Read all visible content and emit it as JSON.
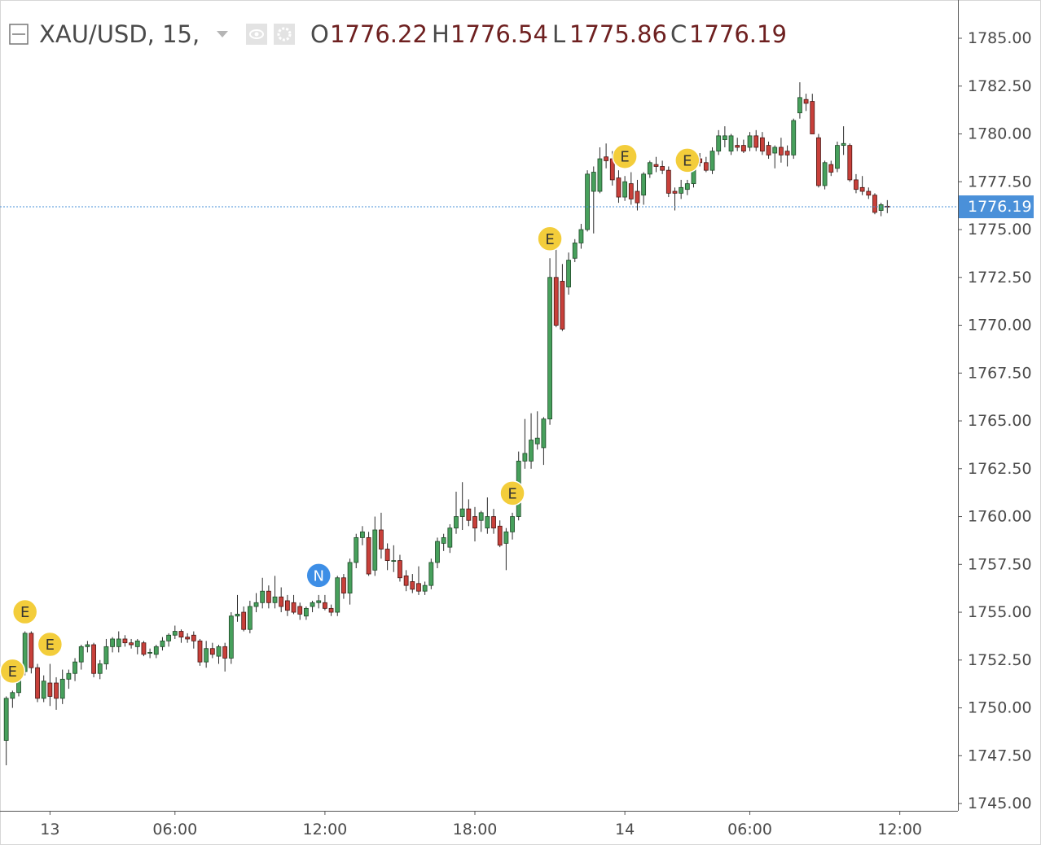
{
  "chart_data": {
    "type": "candlestick",
    "title": "XAU/USD, 15,",
    "ohlc_labels": [
      "O",
      "H",
      "L",
      "C"
    ],
    "up_color": "#47a05c",
    "down_color": "#c8403a",
    "price_line_color": "#4a90d9",
    "event_colors": {
      "E": "#f3cd3b",
      "N": "#3d8ee6"
    },
    "xlim": [
      -1,
      152.3
    ],
    "xticks": [
      {
        "value": 7,
        "label": "13"
      },
      {
        "value": 27,
        "label": "06:00"
      },
      {
        "value": 51,
        "label": "12:00"
      },
      {
        "value": 75,
        "label": "18:00"
      },
      {
        "value": 99,
        "label": "14"
      },
      {
        "value": 119,
        "label": "06:00"
      },
      {
        "value": 143,
        "label": "12:00"
      }
    ],
    "ylim": [
      1744.62,
      1787
    ],
    "yticks": [
      {
        "value": 1745,
        "label": "1745.00"
      },
      {
        "value": 1747.5,
        "label": "1747.50"
      },
      {
        "value": 1750,
        "label": "1750.00"
      },
      {
        "value": 1752.5,
        "label": "1752.50"
      },
      {
        "value": 1755,
        "label": "1755.00"
      },
      {
        "value": 1757.5,
        "label": "1757.50"
      },
      {
        "value": 1760,
        "label": "1760.00"
      },
      {
        "value": 1762.5,
        "label": "1762.50"
      },
      {
        "value": 1765,
        "label": "1765.00"
      },
      {
        "value": 1767.5,
        "label": "1767.50"
      },
      {
        "value": 1770,
        "label": "1770.00"
      },
      {
        "value": 1772.5,
        "label": "1772.50"
      },
      {
        "value": 1775,
        "label": "1775.00"
      },
      {
        "value": 1777.5,
        "label": "1777.50"
      },
      {
        "value": 1780,
        "label": "1780.00"
      },
      {
        "value": 1782.5,
        "label": "1782.50"
      },
      {
        "value": 1785,
        "label": "1785.00"
      }
    ],
    "grid": false,
    "open": [
      1748.3,
      1750.5,
      1750.8,
      1751.9,
      1753.9,
      1752.1,
      1750.5,
      1751.3,
      1751.3,
      1750.5,
      1751.5,
      1751.8,
      1752.4,
      1753.2,
      1753.3,
      1751.8,
      1752.3,
      1753.2,
      1753.2,
      1753.6,
      1753.4,
      1753.2,
      1753.4,
      1752.9,
      1752.8,
      1753.2,
      1753.5,
      1753.8,
      1754.0,
      1753.7,
      1753.8,
      1753.5,
      1752.4,
      1753.1,
      1752.7,
      1753.2,
      1752.6,
      1754.8,
      1755.0,
      1754.1,
      1755.3,
      1755.5,
      1756.1,
      1755.5,
      1755.8,
      1755.6,
      1755.5,
      1755.3,
      1754.8,
      1755.3,
      1755.5,
      1755.5,
      1755.2,
      1755.0,
      1756.8,
      1756.0,
      1757.6,
      1758.9,
      1758.9,
      1757.2,
      1759.3,
      1758.3,
      1757.7,
      1757.7,
      1756.9,
      1756.6,
      1756.5,
      1756.1,
      1756.4,
      1757.6,
      1758.6,
      1758.4,
      1759.4,
      1760.0,
      1760.4,
      1760.0,
      1759.8,
      1759.4,
      1760.0,
      1759.5,
      1758.6,
      1759.2,
      1760.0,
      1762.9,
      1762.9,
      1763.8,
      1763.6,
      1765.1,
      1772.5,
      1772.3,
      1772.0,
      1773.5,
      1774.3,
      1775.0,
      1777.0,
      1777.0,
      1778.8,
      1778.7,
      1777.7,
      1776.7,
      1777.4,
      1777.0,
      1776.8,
      1777.9,
      1778.4,
      1778.3,
      1778.1,
      1777.0,
      1776.9,
      1777.1,
      1777.4,
      1778.7,
      1778.5,
      1778.1,
      1779.1,
      1779.7,
      1779.1,
      1779.4,
      1779.4,
      1779.3,
      1779.9,
      1779.8,
      1779.4,
      1779.0,
      1779.3,
      1779.1,
      1778.9,
      1781.1,
      1781.8,
      1781.7,
      1779.8,
      1777.3,
      1778.4,
      1778.2,
      1779.4,
      1779.4,
      1777.6,
      1777.2,
      1777.0,
      1776.8,
      1776.0,
      1776.22
    ],
    "high": [
      1750.6,
      1750.9,
      1751.9,
      1754.0,
      1754.0,
      1752.3,
      1751.7,
      1752.3,
      1751.6,
      1752.0,
      1752.0,
      1752.6,
      1753.3,
      1753.5,
      1753.4,
      1752.5,
      1753.6,
      1753.7,
      1754.0,
      1753.8,
      1753.6,
      1753.6,
      1753.5,
      1753.1,
      1753.3,
      1753.7,
      1753.9,
      1754.3,
      1754.1,
      1753.9,
      1754.0,
      1753.6,
      1753.5,
      1753.4,
      1753.3,
      1753.4,
      1755.0,
      1755.9,
      1755.3,
      1755.6,
      1756.0,
      1756.8,
      1756.4,
      1756.9,
      1756.3,
      1755.9,
      1755.9,
      1755.5,
      1755.3,
      1755.6,
      1755.9,
      1755.9,
      1755.4,
      1756.9,
      1757.0,
      1757.8,
      1759.1,
      1759.5,
      1759.2,
      1760.0,
      1760.2,
      1758.6,
      1758.5,
      1758.0,
      1757.2,
      1757.0,
      1757.4,
      1756.6,
      1757.8,
      1758.9,
      1759.1,
      1759.6,
      1761.3,
      1761.8,
      1760.9,
      1760.5,
      1760.3,
      1761.0,
      1760.4,
      1759.8,
      1759.4,
      1760.2,
      1763.4,
      1765.1,
      1765.4,
      1765.5,
      1765.2,
      1773.5,
      1774.4,
      1773.2,
      1773.8,
      1774.5,
      1775.3,
      1778.1,
      1778.3,
      1779.3,
      1779.5,
      1779.1,
      1778.1,
      1777.8,
      1778.0,
      1777.6,
      1778.0,
      1778.6,
      1778.8,
      1778.6,
      1778.3,
      1777.2,
      1777.6,
      1777.6,
      1778.7,
      1779.0,
      1778.8,
      1779.3,
      1780.2,
      1780.4,
      1780.0,
      1779.8,
      1779.7,
      1780.1,
      1780.2,
      1780.1,
      1779.6,
      1779.4,
      1779.8,
      1779.4,
      1780.8,
      1782.7,
      1782.1,
      1782.1,
      1780.0,
      1778.6,
      1778.6,
      1779.6,
      1780.4,
      1779.5,
      1777.9,
      1777.8,
      1777.2,
      1776.9,
      1776.4,
      1776.54
    ],
    "low": [
      1747.0,
      1750.0,
      1750.6,
      1751.7,
      1751.8,
      1750.3,
      1750.3,
      1750.1,
      1749.9,
      1750.2,
      1751.0,
      1751.4,
      1752.0,
      1752.9,
      1751.6,
      1751.5,
      1752.0,
      1752.9,
      1752.9,
      1753.2,
      1753.1,
      1752.8,
      1752.7,
      1752.6,
      1752.6,
      1753.0,
      1753.2,
      1753.6,
      1753.4,
      1753.4,
      1753.1,
      1752.2,
      1752.1,
      1752.6,
      1752.3,
      1751.9,
      1752.3,
      1754.5,
      1754.0,
      1753.9,
      1755.0,
      1755.2,
      1755.2,
      1755.2,
      1755.0,
      1754.8,
      1754.9,
      1754.6,
      1754.6,
      1755.0,
      1755.2,
      1755.1,
      1754.8,
      1754.8,
      1755.7,
      1755.4,
      1757.3,
      1758.5,
      1756.9,
      1756.9,
      1757.8,
      1757.2,
      1757.1,
      1756.6,
      1756.1,
      1756.0,
      1755.9,
      1755.9,
      1756.2,
      1757.3,
      1758.2,
      1758.1,
      1759.1,
      1759.3,
      1759.5,
      1758.7,
      1759.2,
      1759.1,
      1759.1,
      1758.4,
      1757.2,
      1758.8,
      1759.8,
      1762.5,
      1762.5,
      1763.5,
      1762.7,
      1764.8,
      1769.9,
      1769.7,
      1771.6,
      1773.3,
      1774.0,
      1774.9,
      1774.8,
      1776.9,
      1778.2,
      1777.3,
      1776.4,
      1776.5,
      1776.3,
      1776.0,
      1776.3,
      1777.7,
      1778.0,
      1777.9,
      1776.7,
      1776.0,
      1776.6,
      1776.8,
      1777.2,
      1778.3,
      1778.0,
      1777.9,
      1778.9,
      1779.3,
      1778.9,
      1779.1,
      1779.0,
      1779.1,
      1779.1,
      1778.9,
      1778.7,
      1778.2,
      1778.5,
      1778.3,
      1778.7,
      1780.8,
      1781.2,
      1780.0,
      1777.2,
      1777.1,
      1777.8,
      1778.0,
      1778.9,
      1777.5,
      1776.9,
      1776.8,
      1776.6,
      1775.8,
      1775.7,
      1775.86
    ],
    "close": [
      1750.5,
      1750.8,
      1751.9,
      1753.9,
      1752.1,
      1750.5,
      1751.4,
      1750.6,
      1750.5,
      1751.5,
      1751.8,
      1752.4,
      1753.2,
      1753.3,
      1751.8,
      1752.3,
      1753.2,
      1753.6,
      1753.6,
      1753.4,
      1753.3,
      1753.5,
      1752.8,
      1752.9,
      1753.2,
      1753.5,
      1753.8,
      1754.0,
      1753.7,
      1753.6,
      1753.5,
      1752.4,
      1753.1,
      1752.8,
      1753.2,
      1752.6,
      1754.8,
      1754.9,
      1754.1,
      1755.3,
      1755.5,
      1756.1,
      1755.5,
      1755.8,
      1755.3,
      1755.1,
      1755.0,
      1754.9,
      1755.2,
      1755.5,
      1755.6,
      1755.2,
      1755.0,
      1756.8,
      1756.0,
      1757.6,
      1758.9,
      1759.2,
      1757.0,
      1759.3,
      1758.3,
      1757.7,
      1757.7,
      1756.8,
      1756.4,
      1756.2,
      1756.1,
      1756.4,
      1757.6,
      1758.7,
      1758.9,
      1759.4,
      1760.0,
      1760.4,
      1759.8,
      1759.4,
      1760.2,
      1760.0,
      1759.4,
      1758.5,
      1759.2,
      1760.0,
      1762.9,
      1763.3,
      1764.0,
      1764.1,
      1765.1,
      1772.5,
      1770.0,
      1769.8,
      1773.4,
      1774.3,
      1775.0,
      1777.9,
      1778.0,
      1778.7,
      1778.6,
      1777.6,
      1776.7,
      1777.5,
      1776.6,
      1776.4,
      1777.9,
      1778.5,
      1778.3,
      1778.1,
      1776.9,
      1776.9,
      1777.2,
      1777.4,
      1778.7,
      1778.5,
      1778.1,
      1779.1,
      1779.9,
      1779.9,
      1779.9,
      1779.3,
      1779.1,
      1779.9,
      1779.3,
      1779.1,
      1778.9,
      1779.3,
      1778.9,
      1778.9,
      1780.7,
      1781.9,
      1781.6,
      1780.0,
      1777.3,
      1778.5,
      1778.0,
      1779.4,
      1779.5,
      1777.6,
      1777.1,
      1777.0,
      1776.8,
      1775.9,
      1776.3,
      1776.19
    ],
    "events": [
      {
        "label": "E",
        "x": 1
      },
      {
        "label": "E",
        "x": 3
      },
      {
        "label": "E",
        "x": 7
      },
      {
        "label": "N",
        "x": 50
      },
      {
        "label": "E",
        "x": 81
      },
      {
        "label": "E",
        "x": 87
      },
      {
        "label": "E",
        "x": 99
      },
      {
        "label": "E",
        "x": 109
      }
    ]
  }
}
